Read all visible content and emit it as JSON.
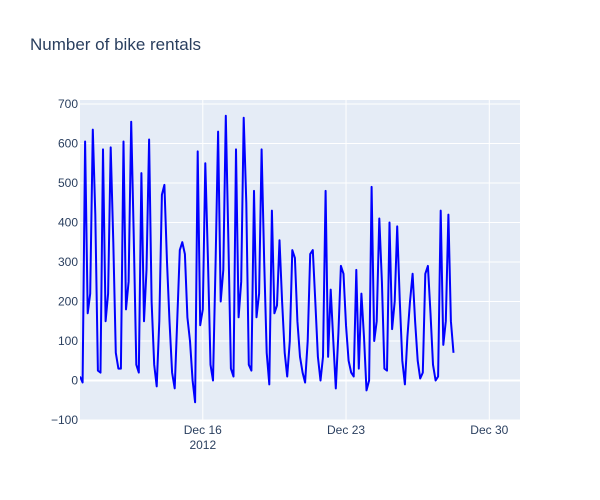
{
  "chart_data": {
    "type": "line",
    "title": "Number of bike rentals",
    "xlabel": "",
    "ylabel": "",
    "x_start": "2012-12-10T00:00",
    "x_range": [
      "2012-12-10T00:00",
      "2012-12-31T12:00"
    ],
    "ylim": [
      -100,
      710
    ],
    "grid": true,
    "legend": "none",
    "line_color": "#0000ff",
    "plot_bg": "#e5ecf6",
    "x_ticks": [
      {
        "value": "2012-12-16T00:00",
        "label": "Dec 16",
        "sublabel": "2012"
      },
      {
        "value": "2012-12-23T00:00",
        "label": "Dec 23",
        "sublabel": ""
      },
      {
        "value": "2012-12-30T00:00",
        "label": "Dec 30",
        "sublabel": ""
      }
    ],
    "y_ticks": [
      -100,
      0,
      100,
      200,
      300,
      400,
      500,
      600,
      700
    ],
    "series": [
      {
        "sample_interval_hours": 3,
        "values": [
          10,
          -5,
          605,
          170,
          220,
          635,
          420,
          25,
          20,
          585,
          150,
          220,
          590,
          350,
          70,
          30,
          30,
          605,
          180,
          250,
          655,
          370,
          40,
          20,
          525,
          150,
          280,
          610,
          200,
          40,
          -15,
          150,
          470,
          495,
          300,
          150,
          20,
          -20,
          150,
          330,
          350,
          320,
          160,
          100,
          0,
          -55,
          580,
          140,
          180,
          550,
          310,
          40,
          0,
          300,
          630,
          200,
          280,
          670,
          350,
          30,
          10,
          585,
          160,
          250,
          665,
          450,
          40,
          25,
          480,
          160,
          220,
          585,
          300,
          70,
          -10,
          430,
          170,
          190,
          355,
          200,
          70,
          10,
          100,
          330,
          310,
          150,
          60,
          20,
          -5,
          100,
          320,
          330,
          200,
          60,
          0,
          60,
          480,
          60,
          230,
          100,
          -20,
          120,
          290,
          270,
          140,
          50,
          20,
          10,
          280,
          30,
          220,
          110,
          -25,
          0,
          490,
          100,
          150,
          410,
          250,
          30,
          25,
          400,
          130,
          200,
          390,
          200,
          50,
          -10,
          110,
          200,
          270,
          150,
          50,
          5,
          20,
          270,
          290,
          170,
          40,
          0,
          10,
          430,
          90,
          150,
          420,
          150,
          70
        ]
      }
    ]
  }
}
